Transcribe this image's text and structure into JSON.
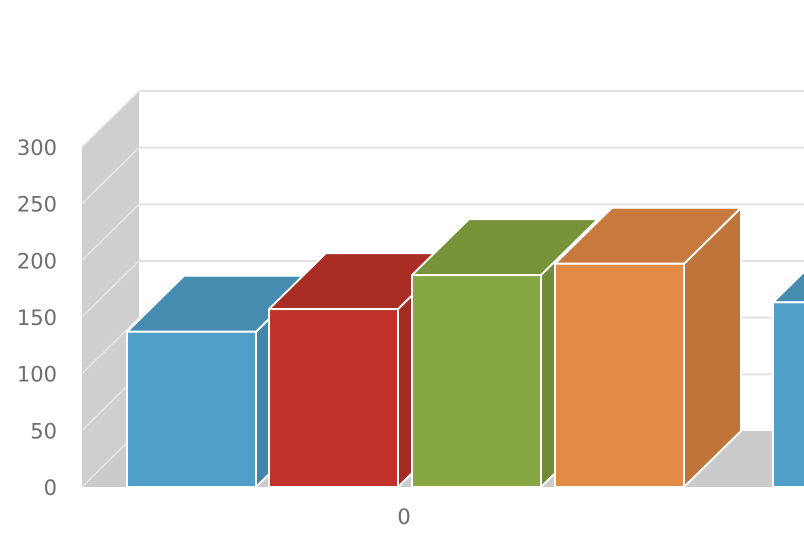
{
  "chart_data": {
    "type": "bar",
    "style": "3d-column",
    "categories": [
      "0"
    ],
    "series": [
      {
        "values": [
          137
        ],
        "color": "#4f9fc9"
      },
      {
        "values": [
          157
        ],
        "color": "#c1332a"
      },
      {
        "values": [
          187
        ],
        "color": "#86a741"
      },
      {
        "values": [
          197
        ],
        "color": "#e38a45"
      },
      {
        "values": [
          163
        ],
        "color": "#4f9fc9"
      }
    ],
    "yticks": [
      "0",
      "50",
      "100",
      "150",
      "200",
      "250",
      "300"
    ],
    "ylim": [
      0,
      300
    ],
    "grid": true,
    "title": "",
    "xlabel": "",
    "ylabel": ""
  }
}
